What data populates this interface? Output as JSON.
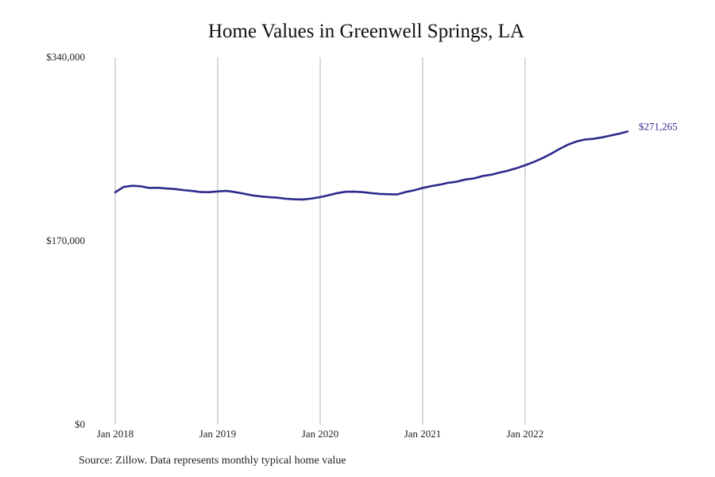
{
  "chart_data": {
    "type": "line",
    "title": "Home Values in Greenwell Springs, LA",
    "xlabel": "",
    "ylabel": "",
    "x_ticks": [
      "Jan 2018",
      "Jan 2019",
      "Jan 2020",
      "Jan 2021",
      "Jan 2022"
    ],
    "y_ticks": [
      "$0",
      "$170,000",
      "$340,000"
    ],
    "ylim": [
      0,
      340000
    ],
    "x_range": [
      "2018-01",
      "2022-12"
    ],
    "grid": "vertical",
    "series": [
      {
        "color": "#2e2a8c",
        "end_label": "$271,265",
        "points": [
          [
            "2018-01",
            215000
          ],
          [
            "2018-02",
            220000
          ],
          [
            "2018-03",
            221000
          ],
          [
            "2018-04",
            220500
          ],
          [
            "2018-05",
            219000
          ],
          [
            "2018-06",
            219200
          ],
          [
            "2018-07",
            218500
          ],
          [
            "2018-08",
            218000
          ],
          [
            "2018-09",
            217000
          ],
          [
            "2018-10",
            216200
          ],
          [
            "2018-11",
            215200
          ],
          [
            "2018-12",
            215100
          ],
          [
            "2019-01",
            215800
          ],
          [
            "2019-02",
            216300
          ],
          [
            "2019-03",
            215200
          ],
          [
            "2019-04",
            213800
          ],
          [
            "2019-05",
            212200
          ],
          [
            "2019-06",
            211200
          ],
          [
            "2019-07",
            210500
          ],
          [
            "2019-08",
            210000
          ],
          [
            "2019-09",
            209000
          ],
          [
            "2019-10",
            208500
          ],
          [
            "2019-11",
            208300
          ],
          [
            "2019-12",
            209200
          ],
          [
            "2020-01",
            210500
          ],
          [
            "2020-02",
            212300
          ],
          [
            "2020-03",
            214200
          ],
          [
            "2020-04",
            215500
          ],
          [
            "2020-05",
            215600
          ],
          [
            "2020-06",
            215100
          ],
          [
            "2020-07",
            214200
          ],
          [
            "2020-08",
            213500
          ],
          [
            "2020-09",
            213200
          ],
          [
            "2020-10",
            213000
          ],
          [
            "2020-11",
            215200
          ],
          [
            "2020-12",
            216800
          ],
          [
            "2021-01",
            219000
          ],
          [
            "2021-02",
            220700
          ],
          [
            "2021-03",
            222000
          ],
          [
            "2021-04",
            223800
          ],
          [
            "2021-05",
            224800
          ],
          [
            "2021-06",
            226800
          ],
          [
            "2021-07",
            227800
          ],
          [
            "2021-08",
            230000
          ],
          [
            "2021-09",
            231200
          ],
          [
            "2021-10",
            233200
          ],
          [
            "2021-11",
            235000
          ],
          [
            "2021-12",
            237300
          ],
          [
            "2022-01",
            240000
          ],
          [
            "2022-02",
            243000
          ],
          [
            "2022-03",
            246500
          ],
          [
            "2022-04",
            250500
          ],
          [
            "2022-05",
            255000
          ],
          [
            "2022-06",
            259000
          ],
          [
            "2022-07",
            262000
          ],
          [
            "2022-08",
            263800
          ],
          [
            "2022-09",
            264500
          ],
          [
            "2022-10",
            265800
          ],
          [
            "2022-11",
            267500
          ],
          [
            "2022-12",
            269200
          ],
          [
            "2023-01",
            271265
          ]
        ]
      }
    ]
  },
  "footer": {
    "source": "Source: Zillow. Data represents monthly typical home value"
  }
}
